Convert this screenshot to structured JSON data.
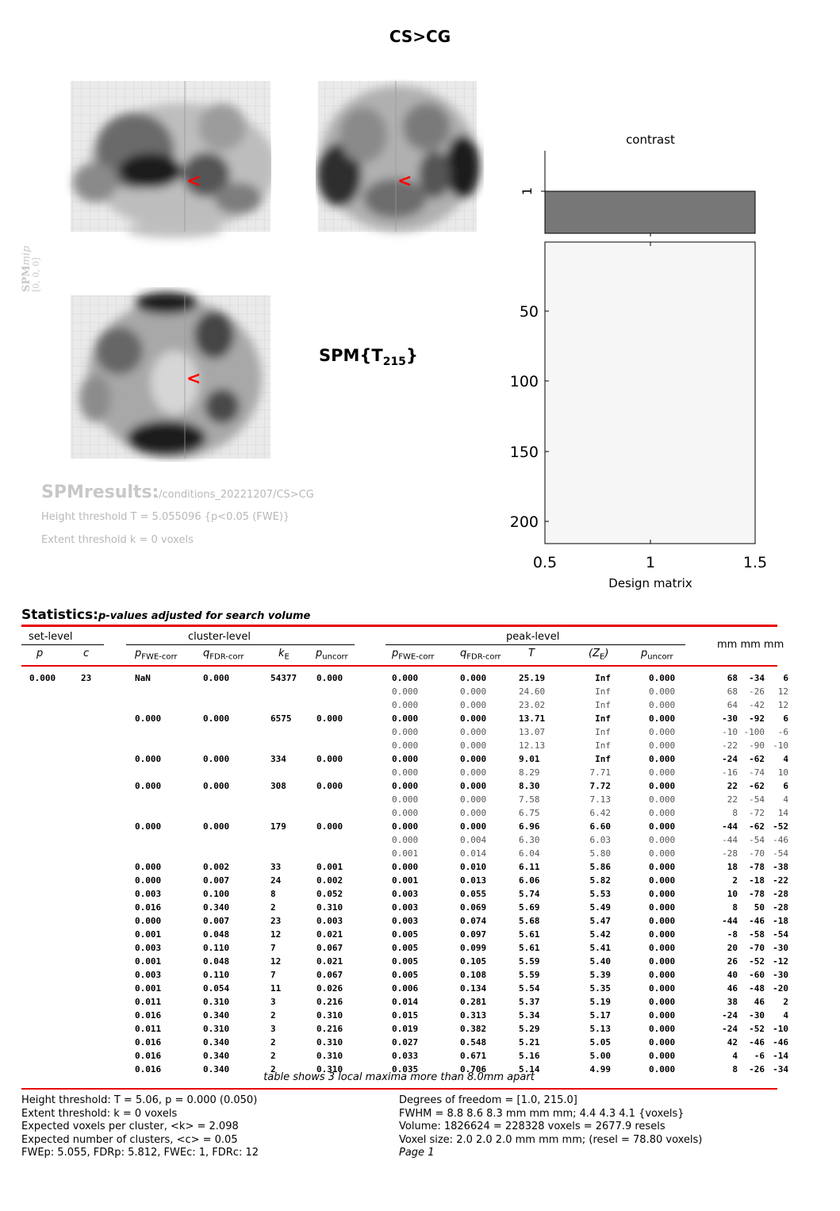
{
  "title": "CS>CG",
  "mip": {
    "label_main": "SPM",
    "label_mip": "mip",
    "coords": "[0, 0, 0]"
  },
  "stat_label": {
    "text": "SPM{T",
    "sub": "215",
    "close": "}"
  },
  "results": {
    "title": "SPMresults:",
    "path": "./conditions_20221207/CS>CG",
    "height_threshold": "Height threshold T = 5.055096  {p<0.05 (FWE)}",
    "extent_threshold": "Extent threshold k = 0 voxels"
  },
  "design": {
    "contrast_title": "contrast",
    "contrast_tick": "1",
    "y_ticks": [
      "50",
      "100",
      "150",
      "200"
    ],
    "x_ticks": [
      "0.5",
      "1",
      "1.5"
    ],
    "xlabel": "Design matrix",
    "contrast_bar_color": "#777777"
  },
  "statistics": {
    "heading": "Statistics:",
    "subheading": "p-values adjusted for search volume",
    "groups": {
      "set": "set-level",
      "cluster": "cluster-level",
      "peak": "peak-level",
      "mm": "mm mm mm"
    },
    "cols": {
      "set_p": "p",
      "set_c": "c",
      "c_pfwe": "p",
      "c_pfwe_sub": "FWE-corr",
      "c_qfdr": "q",
      "c_qfdr_sub": "FDR-corr",
      "c_ke": "k",
      "c_ke_sub": "E",
      "c_punc": "p",
      "c_punc_sub": "uncorr",
      "p_pfwe": "p",
      "p_pfwe_sub": "FWE-corr",
      "p_qfdr": "q",
      "p_qfdr_sub": "FDR-corr",
      "p_t": "T",
      "p_z": "(Z",
      "p_z_sub": "E",
      "p_z_close": ")",
      "p_punc": "p",
      "p_punc_sub": "uncorr"
    },
    "rows": [
      {
        "b": 1,
        "setp": "0.000",
        "setc": "23",
        "cf": "NaN",
        "cq": "0.000",
        "ke": "54377",
        "cu": "0.000",
        "pf": "0.000",
        "pq": "0.000",
        "t": "25.19",
        "z": "Inf",
        "pu": "0.000",
        "x": "68",
        "y": "-34",
        "zz": "6"
      },
      {
        "b": 0,
        "pf": "0.000",
        "pq": "0.000",
        "t": "24.60",
        "z": "Inf",
        "pu": "0.000",
        "x": "68",
        "y": "-26",
        "zz": "12"
      },
      {
        "b": 0,
        "pf": "0.000",
        "pq": "0.000",
        "t": "23.02",
        "z": "Inf",
        "pu": "0.000",
        "x": "64",
        "y": "-42",
        "zz": "12"
      },
      {
        "b": 1,
        "cf": "0.000",
        "cq": "0.000",
        "ke": "6575",
        "cu": "0.000",
        "pf": "0.000",
        "pq": "0.000",
        "t": "13.71",
        "z": "Inf",
        "pu": "0.000",
        "x": "-30",
        "y": "-92",
        "zz": "6"
      },
      {
        "b": 0,
        "pf": "0.000",
        "pq": "0.000",
        "t": "13.07",
        "z": "Inf",
        "pu": "0.000",
        "x": "-10",
        "y": "-100",
        "zz": "-6"
      },
      {
        "b": 0,
        "pf": "0.000",
        "pq": "0.000",
        "t": "12.13",
        "z": "Inf",
        "pu": "0.000",
        "x": "-22",
        "y": "-90",
        "zz": "-10"
      },
      {
        "b": 1,
        "cf": "0.000",
        "cq": "0.000",
        "ke": "334",
        "cu": "0.000",
        "pf": "0.000",
        "pq": "0.000",
        "t": "9.01",
        "z": "Inf",
        "pu": "0.000",
        "x": "-24",
        "y": "-62",
        "zz": "4"
      },
      {
        "b": 0,
        "pf": "0.000",
        "pq": "0.000",
        "t": "8.29",
        "z": "7.71",
        "pu": "0.000",
        "x": "-16",
        "y": "-74",
        "zz": "10"
      },
      {
        "b": 1,
        "cf": "0.000",
        "cq": "0.000",
        "ke": "308",
        "cu": "0.000",
        "pf": "0.000",
        "pq": "0.000",
        "t": "8.30",
        "z": "7.72",
        "pu": "0.000",
        "x": "22",
        "y": "-62",
        "zz": "6"
      },
      {
        "b": 0,
        "pf": "0.000",
        "pq": "0.000",
        "t": "7.58",
        "z": "7.13",
        "pu": "0.000",
        "x": "22",
        "y": "-54",
        "zz": "4"
      },
      {
        "b": 0,
        "pf": "0.000",
        "pq": "0.000",
        "t": "6.75",
        "z": "6.42",
        "pu": "0.000",
        "x": "8",
        "y": "-72",
        "zz": "14"
      },
      {
        "b": 1,
        "cf": "0.000",
        "cq": "0.000",
        "ke": "179",
        "cu": "0.000",
        "pf": "0.000",
        "pq": "0.000",
        "t": "6.96",
        "z": "6.60",
        "pu": "0.000",
        "x": "-44",
        "y": "-62",
        "zz": "-52"
      },
      {
        "b": 0,
        "pf": "0.000",
        "pq": "0.004",
        "t": "6.30",
        "z": "6.03",
        "pu": "0.000",
        "x": "-44",
        "y": "-54",
        "zz": "-46"
      },
      {
        "b": 0,
        "pf": "0.001",
        "pq": "0.014",
        "t": "6.04",
        "z": "5.80",
        "pu": "0.000",
        "x": "-28",
        "y": "-70",
        "zz": "-54"
      },
      {
        "b": 1,
        "cf": "0.000",
        "cq": "0.002",
        "ke": "33",
        "cu": "0.001",
        "pf": "0.000",
        "pq": "0.010",
        "t": "6.11",
        "z": "5.86",
        "pu": "0.000",
        "x": "18",
        "y": "-78",
        "zz": "-38"
      },
      {
        "b": 1,
        "cf": "0.000",
        "cq": "0.007",
        "ke": "24",
        "cu": "0.002",
        "pf": "0.001",
        "pq": "0.013",
        "t": "6.06",
        "z": "5.82",
        "pu": "0.000",
        "x": "2",
        "y": "-18",
        "zz": "-22"
      },
      {
        "b": 1,
        "cf": "0.003",
        "cq": "0.100",
        "ke": "8",
        "cu": "0.052",
        "pf": "0.003",
        "pq": "0.055",
        "t": "5.74",
        "z": "5.53",
        "pu": "0.000",
        "x": "10",
        "y": "-78",
        "zz": "-28"
      },
      {
        "b": 1,
        "cf": "0.016",
        "cq": "0.340",
        "ke": "2",
        "cu": "0.310",
        "pf": "0.003",
        "pq": "0.069",
        "t": "5.69",
        "z": "5.49",
        "pu": "0.000",
        "x": "8",
        "y": "50",
        "zz": "-28"
      },
      {
        "b": 1,
        "cf": "0.000",
        "cq": "0.007",
        "ke": "23",
        "cu": "0.003",
        "pf": "0.003",
        "pq": "0.074",
        "t": "5.68",
        "z": "5.47",
        "pu": "0.000",
        "x": "-44",
        "y": "-46",
        "zz": "-18"
      },
      {
        "b": 1,
        "cf": "0.001",
        "cq": "0.048",
        "ke": "12",
        "cu": "0.021",
        "pf": "0.005",
        "pq": "0.097",
        "t": "5.61",
        "z": "5.42",
        "pu": "0.000",
        "x": "-8",
        "y": "-58",
        "zz": "-54"
      },
      {
        "b": 1,
        "cf": "0.003",
        "cq": "0.110",
        "ke": "7",
        "cu": "0.067",
        "pf": "0.005",
        "pq": "0.099",
        "t": "5.61",
        "z": "5.41",
        "pu": "0.000",
        "x": "20",
        "y": "-70",
        "zz": "-30"
      },
      {
        "b": 1,
        "cf": "0.001",
        "cq": "0.048",
        "ke": "12",
        "cu": "0.021",
        "pf": "0.005",
        "pq": "0.105",
        "t": "5.59",
        "z": "5.40",
        "pu": "0.000",
        "x": "26",
        "y": "-52",
        "zz": "-12"
      },
      {
        "b": 1,
        "cf": "0.003",
        "cq": "0.110",
        "ke": "7",
        "cu": "0.067",
        "pf": "0.005",
        "pq": "0.108",
        "t": "5.59",
        "z": "5.39",
        "pu": "0.000",
        "x": "40",
        "y": "-60",
        "zz": "-30"
      },
      {
        "b": 1,
        "cf": "0.001",
        "cq": "0.054",
        "ke": "11",
        "cu": "0.026",
        "pf": "0.006",
        "pq": "0.134",
        "t": "5.54",
        "z": "5.35",
        "pu": "0.000",
        "x": "46",
        "y": "-48",
        "zz": "-20"
      },
      {
        "b": 1,
        "cf": "0.011",
        "cq": "0.310",
        "ke": "3",
        "cu": "0.216",
        "pf": "0.014",
        "pq": "0.281",
        "t": "5.37",
        "z": "5.19",
        "pu": "0.000",
        "x": "38",
        "y": "46",
        "zz": "2"
      },
      {
        "b": 1,
        "cf": "0.016",
        "cq": "0.340",
        "ke": "2",
        "cu": "0.310",
        "pf": "0.015",
        "pq": "0.313",
        "t": "5.34",
        "z": "5.17",
        "pu": "0.000",
        "x": "-24",
        "y": "-30",
        "zz": "4"
      },
      {
        "b": 1,
        "cf": "0.011",
        "cq": "0.310",
        "ke": "3",
        "cu": "0.216",
        "pf": "0.019",
        "pq": "0.382",
        "t": "5.29",
        "z": "5.13",
        "pu": "0.000",
        "x": "-24",
        "y": "-52",
        "zz": "-10"
      },
      {
        "b": 1,
        "cf": "0.016",
        "cq": "0.340",
        "ke": "2",
        "cu": "0.310",
        "pf": "0.027",
        "pq": "0.548",
        "t": "5.21",
        "z": "5.05",
        "pu": "0.000",
        "x": "42",
        "y": "-46",
        "zz": "-46"
      },
      {
        "b": 1,
        "cf": "0.016",
        "cq": "0.340",
        "ke": "2",
        "cu": "0.310",
        "pf": "0.033",
        "pq": "0.671",
        "t": "5.16",
        "z": "5.00",
        "pu": "0.000",
        "x": "4",
        "y": "-6",
        "zz": "-14"
      },
      {
        "b": 1,
        "cf": "0.016",
        "cq": "0.340",
        "ke": "2",
        "cu": "0.310",
        "pf": "0.035",
        "pq": "0.706",
        "t": "5.14",
        "z": "4.99",
        "pu": "0.000",
        "x": "8",
        "y": "-26",
        "zz": "-34"
      }
    ],
    "note": "table shows 3 local maxima more than 8.0mm apart"
  },
  "footer": {
    "left": [
      "Height threshold: T = 5.06, p = 0.000 (0.050)",
      "Extent threshold: k = 0 voxels",
      "Expected voxels per cluster, <k> = 2.098",
      "Expected number of clusters, <c> = 0.05",
      "FWEp: 5.055, FDRp: 5.812, FWEc: 1, FDRc: 12"
    ],
    "right": [
      "Degrees of freedom = [1.0, 215.0]",
      "FWHM = 8.8 8.6 8.3 mm mm mm; 4.4 4.3 4.1 {voxels}",
      "Volume: 1826624 = 228328 voxels = 2677.9 resels",
      "Voxel size: 2.0 2.0 2.0 mm mm mm; (resel = 78.80 voxels)",
      "Page 1"
    ]
  },
  "colors": {
    "accent_red": "#e60000",
    "cursor_red": "#ff0000",
    "faded_text": "#b8b8b8"
  },
  "icons": {
    "cursor": "cursor-arrow-icon"
  }
}
